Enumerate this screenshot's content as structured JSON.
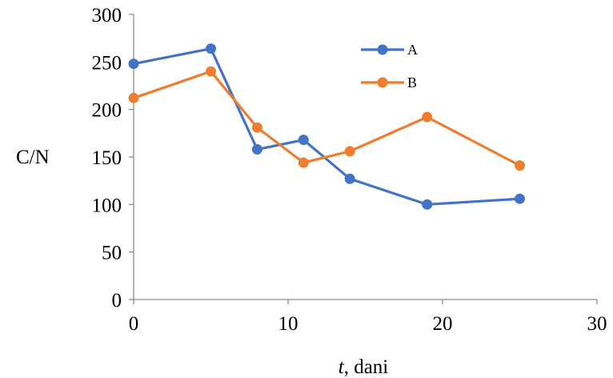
{
  "chart_data": {
    "type": "line",
    "xlabel_italic": "t",
    "xlabel_rest": ", dani",
    "ylabel": "C/N",
    "xlim": [
      0,
      30
    ],
    "ylim": [
      0,
      300
    ],
    "xticks": [
      0,
      10,
      20,
      30
    ],
    "yticks": [
      0,
      50,
      100,
      150,
      200,
      250,
      300
    ],
    "grid": false,
    "legend_position": "top-center",
    "series": [
      {
        "name": "A",
        "color": "#4472C4",
        "x": [
          0,
          5,
          8,
          11,
          14,
          19,
          25
        ],
        "y": [
          248,
          264,
          158,
          168,
          127,
          100,
          106
        ]
      },
      {
        "name": "B",
        "color": "#ED7D31",
        "x": [
          0,
          5,
          8,
          11,
          14,
          19,
          25
        ],
        "y": [
          212,
          240,
          181,
          144,
          156,
          192,
          141
        ]
      }
    ]
  }
}
